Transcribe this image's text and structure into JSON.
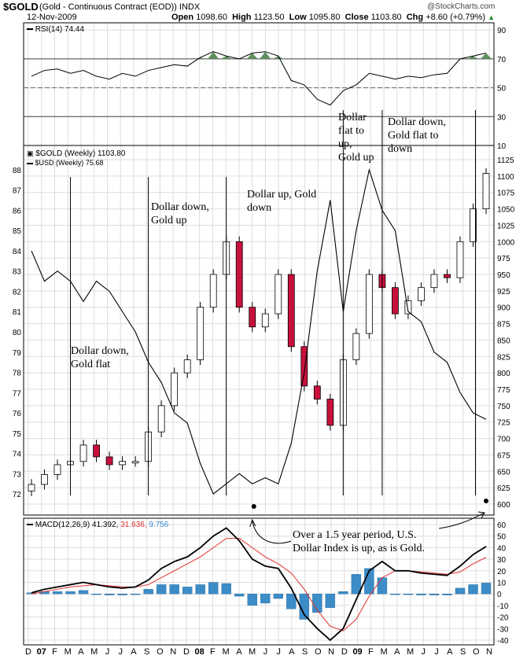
{
  "header": {
    "symbol": "$GOLD",
    "description": "(Gold - Continuous Contract (EOD)) INDX",
    "date": "12-Nov-2009",
    "watermark": "@StockCharts.com",
    "ohlc_open_label": "Open",
    "ohlc_open": "1098.60",
    "ohlc_high_label": "High",
    "ohlc_high": "1123.50",
    "ohlc_low_label": "Low",
    "ohlc_low": "1095.80",
    "ohlc_close_label": "Close",
    "ohlc_close": "1103.80",
    "ohlc_chg_label": "Chg",
    "ohlc_chg": "+8.60 (+0.79%)"
  },
  "colors": {
    "up": "#ffffff",
    "down": "#c8103c",
    "grid": "#dddddd",
    "rsi_fill": "#5f8f5f",
    "macd_signal": "#e03030",
    "macd_hist": "#3c8cc8",
    "frame": "#000000"
  },
  "rsi_panel": {
    "legend": "RSI(14) 74.44",
    "ticks": [
      "90",
      "70",
      "50",
      "30",
      "10"
    ]
  },
  "price_panel": {
    "legend_gold": "$GOLD (Weekly) 1103.80",
    "legend_usd": "$USD (Weekly) 75.68",
    "left_ticks": [
      "88",
      "87",
      "86",
      "85",
      "84",
      "83",
      "82",
      "81",
      "80",
      "79",
      "78",
      "77",
      "76",
      "75",
      "74",
      "73",
      "72"
    ],
    "right_ticks": [
      "1125",
      "1100",
      "1075",
      "1050",
      "1025",
      "1000",
      "975",
      "950",
      "925",
      "900",
      "875",
      "850",
      "825",
      "800",
      "775",
      "750",
      "725",
      "700",
      "675",
      "650",
      "625",
      "600"
    ]
  },
  "macd_panel": {
    "legend_label": "MACD(12,26,9)",
    "legend_macd": "41.392,",
    "legend_signal": "31.636,",
    "legend_hist": "9.756",
    "ticks": [
      "60",
      "50",
      "40",
      "30",
      "20",
      "10",
      "0",
      "-10",
      "-20",
      "-30",
      "-40"
    ]
  },
  "annotations": {
    "a1": [
      "Dollar down,",
      "Gold flat"
    ],
    "a2": [
      "Dollar down,",
      "Gold up"
    ],
    "a3": [
      "Dollar up, Gold",
      "down"
    ],
    "a4": [
      "Dollar",
      "flat to",
      "up,",
      "Gold up"
    ],
    "a5": [
      "Dollar down,",
      "Gold flat to",
      "down"
    ],
    "a6": [
      "Over a 1.5 year period, U.S.",
      "Dollar Index is up, as is Gold."
    ]
  },
  "x_axis": [
    "D",
    "07",
    "F",
    "M",
    "A",
    "M",
    "J",
    "J",
    "A",
    "S",
    "O",
    "N",
    "D",
    "08",
    "F",
    "M",
    "A",
    "M",
    "J",
    "J",
    "A",
    "S",
    "O",
    "N",
    "D",
    "09",
    "F",
    "M",
    "A",
    "M",
    "J",
    "J",
    "A",
    "S",
    "O",
    "N"
  ],
  "chart_data": {
    "type": "line",
    "title": "$GOLD (Gold - Continuous Contract (EOD)) INDX weekly with $USD overlay, RSI(14) and MACD(12,26,9)",
    "x": [
      "Dec-06",
      "Jan-07",
      "Feb-07",
      "Mar-07",
      "Apr-07",
      "May-07",
      "Jun-07",
      "Jul-07",
      "Aug-07",
      "Sep-07",
      "Oct-07",
      "Nov-07",
      "Dec-07",
      "Jan-08",
      "Feb-08",
      "Mar-08",
      "Apr-08",
      "May-08",
      "Jun-08",
      "Jul-08",
      "Aug-08",
      "Sep-08",
      "Oct-08",
      "Nov-08",
      "Dec-08",
      "Jan-09",
      "Feb-09",
      "Mar-09",
      "Apr-09",
      "May-09",
      "Jun-09",
      "Jul-09",
      "Aug-09",
      "Sep-09",
      "Oct-09",
      "Nov-09"
    ],
    "series": [
      {
        "name": "$GOLD (Weekly)",
        "axis": "right",
        "values": [
          630,
          645,
          660,
          665,
          690,
          672,
          660,
          665,
          665,
          710,
          750,
          800,
          820,
          900,
          950,
          1000,
          900,
          870,
          890,
          950,
          840,
          780,
          760,
          720,
          820,
          860,
          950,
          930,
          890,
          910,
          930,
          950,
          945,
          1000,
          1050,
          1104
        ]
      },
      {
        "name": "$USD (Weekly)",
        "axis": "left",
        "values": [
          84,
          82.5,
          83,
          82.5,
          81.5,
          82.5,
          82,
          81,
          80,
          78.5,
          77.5,
          76,
          75.5,
          73.5,
          72,
          72.5,
          73,
          72.5,
          72.8,
          72.5,
          74.5,
          78,
          83,
          86.5,
          81,
          85,
          88,
          86,
          85,
          81,
          80.5,
          79,
          78.5,
          77,
          76,
          75.68
        ]
      }
    ],
    "rsi": {
      "name": "RSI(14)",
      "last": 74.44,
      "ylim": [
        10,
        95
      ],
      "values": [
        58,
        62,
        63,
        60,
        62,
        58,
        56,
        60,
        58,
        62,
        64,
        66,
        65,
        71,
        75,
        72,
        70,
        74,
        75,
        72,
        55,
        52,
        42,
        38,
        48,
        52,
        60,
        58,
        56,
        58,
        57,
        59,
        60,
        70,
        72,
        74
      ]
    },
    "macd": {
      "name": "MACD(12,26,9)",
      "macd_last": 41.392,
      "signal_last": 31.636,
      "hist_last": 9.756,
      "ylim": [
        -40,
        60
      ],
      "macd_values": [
        1,
        4,
        6,
        8,
        10,
        8,
        6,
        5,
        6,
        12,
        22,
        28,
        32,
        40,
        50,
        57,
        46,
        30,
        24,
        22,
        5,
        -18,
        -30,
        -40,
        -30,
        -5,
        20,
        28,
        20,
        20,
        18,
        17,
        16,
        24,
        34,
        41
      ],
      "signal_values": [
        0,
        2,
        4,
        6,
        7,
        8,
        7,
        6,
        6,
        8,
        14,
        20,
        26,
        32,
        40,
        48,
        48,
        40,
        32,
        26,
        18,
        4,
        -14,
        -28,
        -32,
        -22,
        -2,
        14,
        20,
        20,
        19,
        18,
        17,
        19,
        26,
        31.6
      ]
    },
    "xlabel": "",
    "ylabel": "",
    "ylim_left": [
      71.5,
      88.5
    ],
    "ylim_right": [
      600,
      1125
    ]
  }
}
